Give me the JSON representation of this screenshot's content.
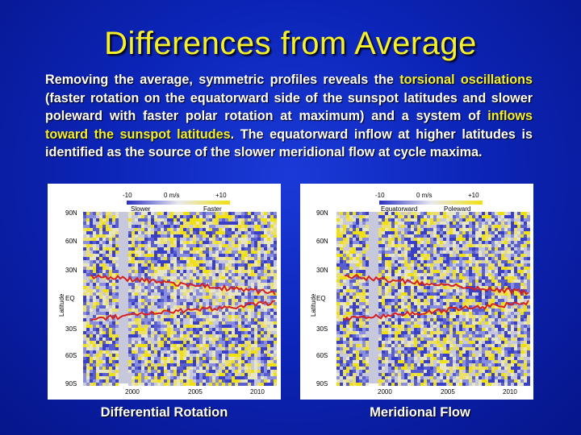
{
  "slide": {
    "title": "Differences from Average",
    "paragraph": {
      "part1": "Removing the average, symmetric profiles reveals the ",
      "hl1": "torsional oscillations",
      "part2": " (faster rotation on the equatorward side of the sunspot latitudes and slower poleward with faster polar rotation at maximum) and a system of ",
      "hl2": "inflows toward the sunspot latitudes",
      "part3": ". The equatorward inflow at higher latitudes is identified as the source of the slower meridional flow at cycle maxima."
    }
  },
  "colors": {
    "title": "#f5f02a",
    "highlight": "#f5f02a",
    "band_red": "#d42020",
    "slow": "#5a5fd0",
    "fast": "#e8e060"
  },
  "plots": [
    {
      "caption": "Differential Rotation",
      "colorbar": {
        "min_label": "-10",
        "mid_label": "0 m/s",
        "max_label": "+10",
        "left_name": "Slower",
        "right_name": "Faster"
      },
      "ylabel": "Latitude",
      "yticks": [
        "90N",
        "60N",
        "30N",
        "EQ",
        "30S",
        "60S",
        "90S"
      ],
      "xticks": [
        "2000",
        "2005",
        "2010"
      ]
    },
    {
      "caption": "Meridional Flow",
      "colorbar": {
        "min_label": "-10",
        "mid_label": "0 m/s",
        "max_label": "+10",
        "left_name": "Equatorward",
        "right_name": "Poleward"
      },
      "ylabel": "Latitude",
      "yticks": [
        "90N",
        "60N",
        "30N",
        "EQ",
        "30S",
        "60S",
        "90S"
      ],
      "xticks": [
        "2000",
        "2005",
        "2010"
      ]
    }
  ]
}
